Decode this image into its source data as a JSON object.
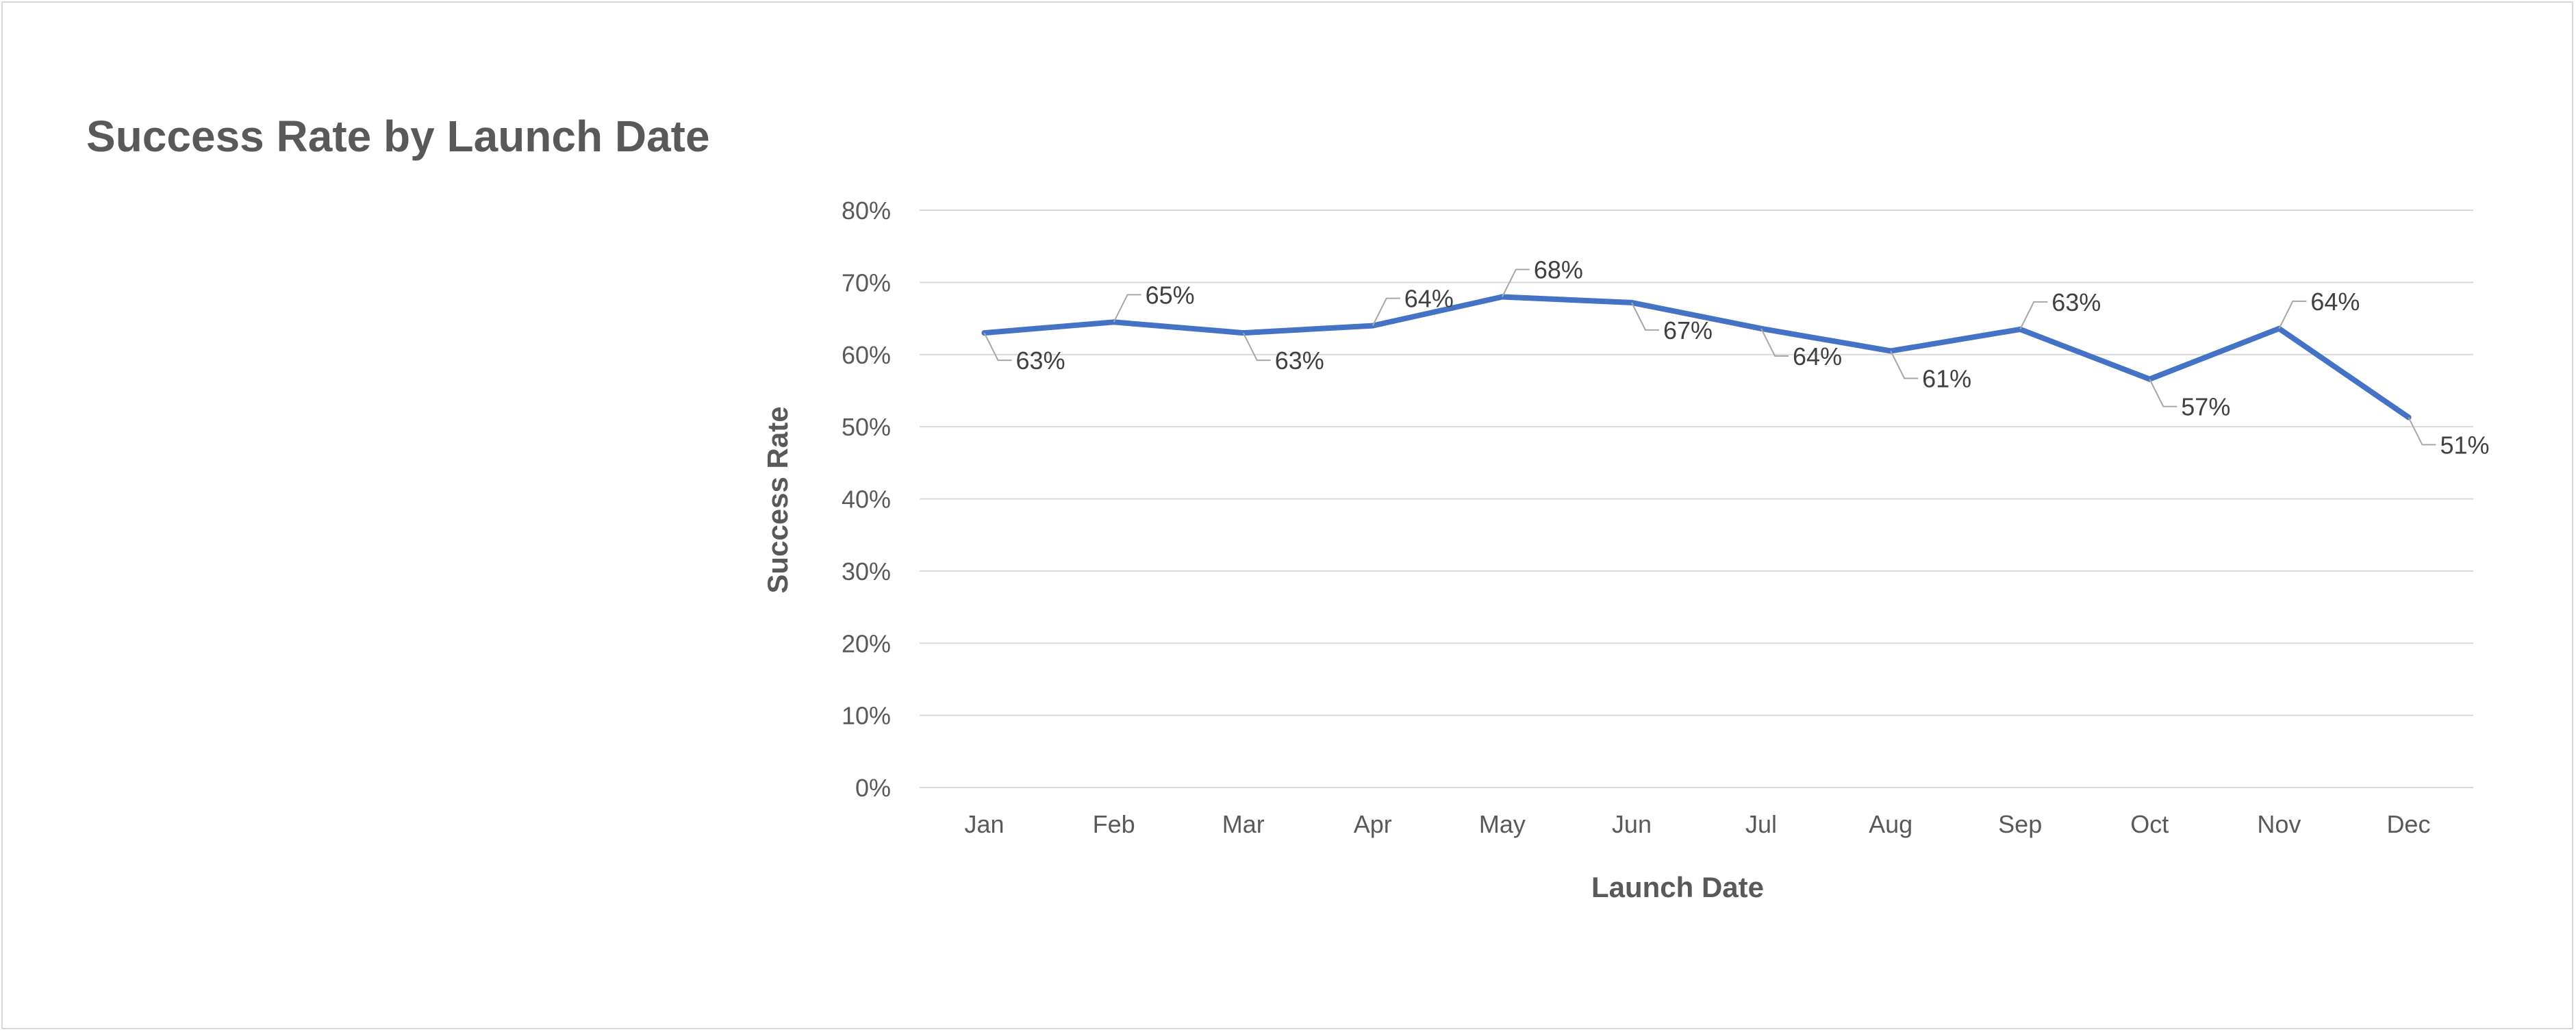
{
  "chart_data": {
    "type": "line",
    "title": "Success Rate by Launch Date",
    "xlabel": "Launch Date",
    "ylabel": "Success Rate",
    "categories": [
      "Jan",
      "Feb",
      "Mar",
      "Apr",
      "May",
      "Jun",
      "Jul",
      "Aug",
      "Sep",
      "Oct",
      "Nov",
      "Dec"
    ],
    "series": [
      {
        "values": [
          0.63,
          0.645,
          0.63,
          0.64,
          0.68,
          0.672,
          0.636,
          0.605,
          0.635,
          0.566,
          0.636,
          0.513
        ],
        "labels": [
          "63%",
          "65%",
          "63%",
          "64%",
          "68%",
          "67%",
          "64%",
          "61%",
          "63%",
          "57%",
          "64%",
          "51%"
        ],
        "label_positions": [
          "below",
          "above",
          "below",
          "above",
          "above",
          "below",
          "below",
          "below",
          "above",
          "below",
          "above",
          "below"
        ],
        "color": "#4472C4"
      }
    ],
    "ylim": [
      0,
      0.8
    ],
    "y_ticks": [
      "0%",
      "10%",
      "20%",
      "30%",
      "40%",
      "50%",
      "60%",
      "70%",
      "80%"
    ],
    "grid": true,
    "gridline_color": "#d9d9d9",
    "legend": "none"
  }
}
